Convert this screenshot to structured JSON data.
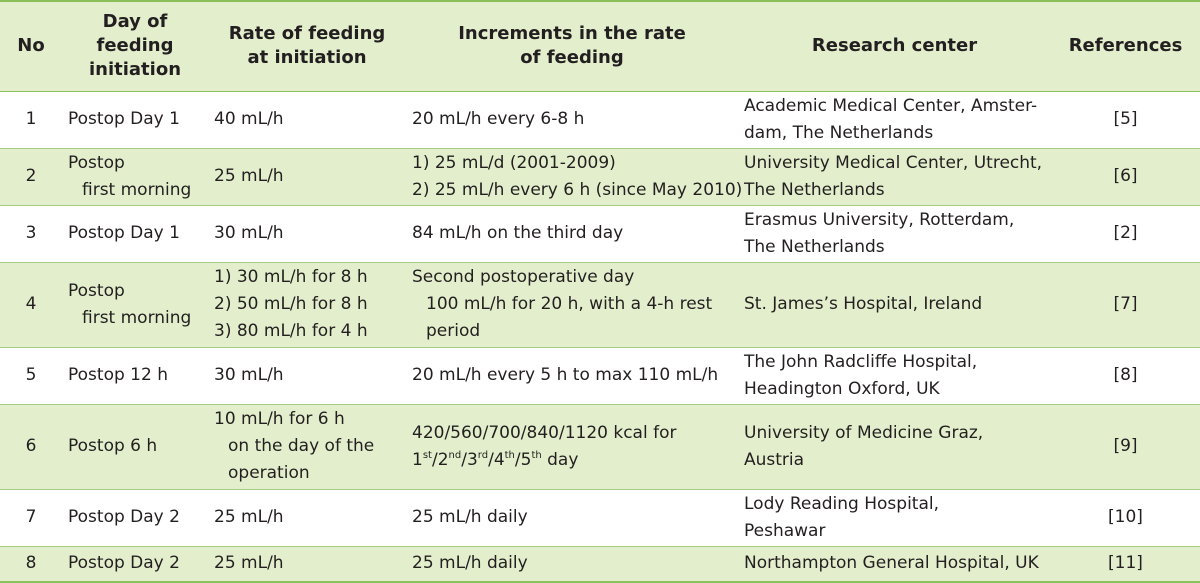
{
  "table": {
    "headers": {
      "no": "No",
      "day": [
        "Day of",
        "feeding",
        "initiation"
      ],
      "rate": [
        "Rate of feeding",
        "at initiation"
      ],
      "increments": [
        "Increments in the rate",
        "of feeding"
      ],
      "center": "Research center",
      "refs": "References"
    },
    "rows": [
      {
        "no": "1",
        "day": [
          "Postop Day 1"
        ],
        "rate": [
          "40 mL/h"
        ],
        "increments": [
          "20 mL/h every 6-8 h"
        ],
        "center": [
          "Academic Medical Center, Amster-",
          "dam, The Netherlands"
        ],
        "ref": "[5]"
      },
      {
        "no": "2",
        "day": [
          "Postop",
          "first morning"
        ],
        "rate": [
          "25 mL/h"
        ],
        "increments": [
          "1) 25 mL/d (2001-2009)",
          "2) 25 mL/h every 6 h (since May 2010)"
        ],
        "center": [
          "University Medical Center, Utrecht,",
          "The Netherlands"
        ],
        "ref": "[6]"
      },
      {
        "no": "3",
        "day": [
          "Postop Day 1"
        ],
        "rate": [
          "30 mL/h"
        ],
        "increments": [
          "84 mL/h on the third day"
        ],
        "center": [
          "Erasmus University, Rotterdam,",
          "The Netherlands"
        ],
        "ref": "[2]"
      },
      {
        "no": "4",
        "day": [
          "Postop",
          "first morning"
        ],
        "rate": [
          "1) 30 mL/h for 8 h",
          "2) 50 mL/h for 8 h",
          "3) 80 mL/h for 4 h"
        ],
        "increments": [
          "Second postoperative day",
          "100 mL/h for 20 h, with a 4-h rest",
          "period"
        ],
        "center": [
          "St. James’s Hospital, Ireland"
        ],
        "ref": "[7]"
      },
      {
        "no": "5",
        "day": [
          "Postop 12 h"
        ],
        "rate": [
          "30 mL/h"
        ],
        "increments": [
          "20 mL/h every 5 h to max 110 mL/h"
        ],
        "center": [
          "The John Radcliffe Hospital,",
          "Headington Oxford, UK"
        ],
        "ref": "[8]"
      },
      {
        "no": "6",
        "day": [
          "Postop 6 h"
        ],
        "rate": [
          "10 mL/h for 6 h",
          "on the day of the",
          "operation"
        ],
        "increments": {
          "line1": "420/560/700/840/1120 kcal for",
          "ordinals": [
            "1",
            "st",
            "2",
            "nd",
            "3",
            "rd",
            "4",
            "th",
            "5",
            "th"
          ],
          "separator": "/",
          "suffix": " day"
        },
        "center": [
          "University of Medicine Graz,",
          "Austria"
        ],
        "ref": "[9]"
      },
      {
        "no": "7",
        "day": [
          "Postop Day 2"
        ],
        "rate": [
          "25 mL/h"
        ],
        "increments": [
          "25 mL/h daily"
        ],
        "center": [
          "Lody Reading Hospital,",
          "Peshawar"
        ],
        "ref": "[10]"
      },
      {
        "no": "8",
        "day": [
          "Postop Day 2"
        ],
        "rate": [
          "25 mL/h"
        ],
        "increments": [
          "25 mL/h daily"
        ],
        "center": [
          "Northampton General Hospital, UK"
        ],
        "ref": "[11]"
      }
    ]
  },
  "colors": {
    "header_bg": "#e3efcc",
    "stripe_bg": "#e3efcc",
    "rule": "#8bbf5a",
    "text": "#231f20"
  }
}
